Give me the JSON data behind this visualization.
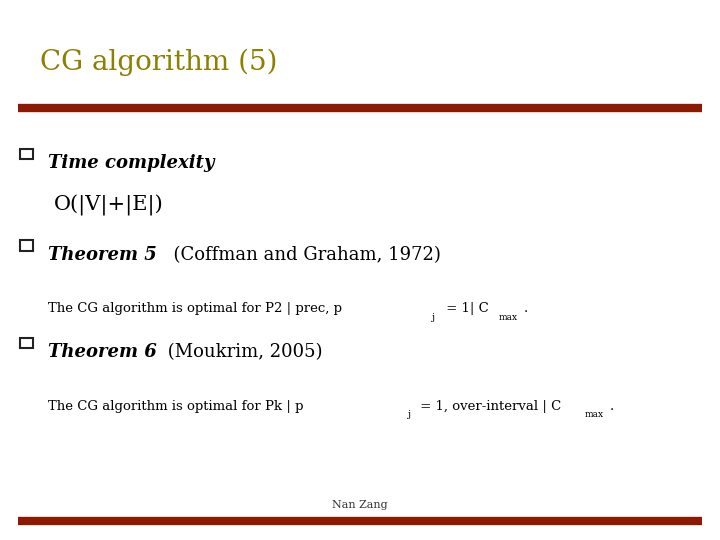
{
  "title": "CG algorithm (5)",
  "title_color": "#8B8000",
  "title_fontsize": 20,
  "bg_color": "#FFFFFF",
  "bar_color": "#8B1A00",
  "section1_header": "Time complexity",
  "section1_body": "O(|V|+|E|)",
  "section2_header": "Theorem 5",
  "section2_suffix": "  (Coffman and Graham, 1972)",
  "section3_header": "Theorem 6",
  "section3_suffix": " (Moukrim, 2005)",
  "footer": "Nan Zang",
  "footer_fontsize": 8,
  "bar_thick": 5
}
